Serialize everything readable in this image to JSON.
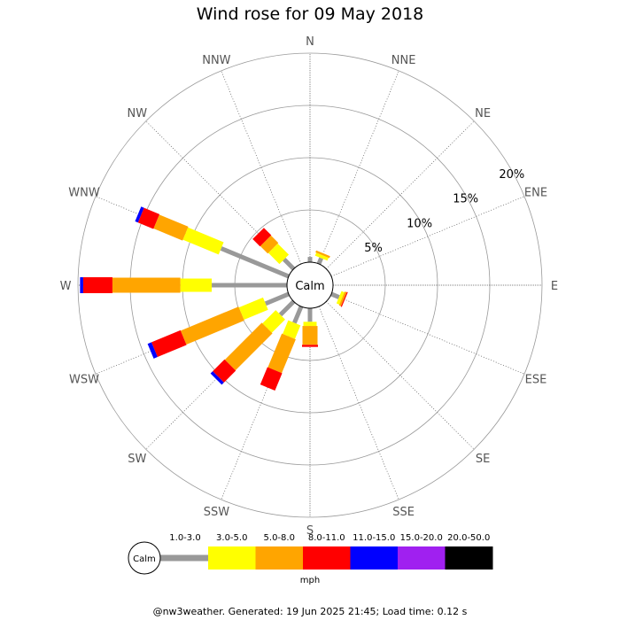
{
  "chart_data": {
    "type": "wind-rose",
    "title": "Wind rose for 09 May 2018",
    "directions": [
      "N",
      "NNE",
      "NE",
      "ENE",
      "E",
      "ESE",
      "SE",
      "SSE",
      "S",
      "SSW",
      "SW",
      "WSW",
      "W",
      "WNW",
      "NW",
      "NNW"
    ],
    "radial_ticks": [
      5,
      10,
      15,
      20
    ],
    "radial_tick_labels": [
      "5%",
      "10%",
      "15%",
      "20%"
    ],
    "radial_max": 20,
    "calm_label": "Calm",
    "speed_unit": "mph",
    "speed_bins": [
      {
        "label": "1.0-3.0",
        "color": "#999999"
      },
      {
        "label": "3.0-5.0",
        "color": "#ffff00"
      },
      {
        "label": "5.0-8.0",
        "color": "#ffa500"
      },
      {
        "label": "8.0-11.0",
        "color": "#ff0000"
      },
      {
        "label": "11.0-15.0",
        "color": "#0000ff"
      },
      {
        "label": "15.0-20.0",
        "color": "#a020f0"
      },
      {
        "label": "20.0-50.0",
        "color": "#000000"
      }
    ],
    "series": [
      {
        "direction": "N",
        "values": [
          0.5,
          0.0,
          0.0,
          0.0,
          0.0,
          0.0,
          0.0
        ]
      },
      {
        "direction": "NNE",
        "values": [
          0.6,
          0.3,
          0.2,
          0.0,
          0.0,
          0.0,
          0.0
        ]
      },
      {
        "direction": "NE",
        "values": [
          0.0,
          0.0,
          0.0,
          0.0,
          0.0,
          0.0,
          0.0
        ]
      },
      {
        "direction": "ENE",
        "values": [
          0.0,
          0.0,
          0.0,
          0.0,
          0.0,
          0.0,
          0.0
        ]
      },
      {
        "direction": "E",
        "values": [
          0.0,
          0.0,
          0.0,
          0.0,
          0.0,
          0.0,
          0.0
        ]
      },
      {
        "direction": "ESE",
        "values": [
          0.8,
          0.3,
          0.2,
          0.1,
          0.0,
          0.0,
          0.0
        ]
      },
      {
        "direction": "SE",
        "values": [
          0.0,
          0.0,
          0.0,
          0.0,
          0.0,
          0.0,
          0.0
        ]
      },
      {
        "direction": "SSE",
        "values": [
          0.0,
          0.0,
          0.0,
          0.0,
          0.0,
          0.0,
          0.0
        ]
      },
      {
        "direction": "S",
        "values": [
          1.3,
          0.4,
          1.8,
          0.2,
          0.0,
          0.0,
          0.0
        ]
      },
      {
        "direction": "SSW",
        "values": [
          1.7,
          1.4,
          3.5,
          1.8,
          0.0,
          0.0,
          0.0
        ]
      },
      {
        "direction": "SW",
        "values": [
          1.8,
          1.8,
          5.0,
          1.6,
          0.3,
          0.0,
          0.0
        ]
      },
      {
        "direction": "WSW",
        "values": [
          2.4,
          2.5,
          6.0,
          3.0,
          0.4,
          0.0,
          0.0
        ]
      },
      {
        "direction": "W",
        "values": [
          7.2,
          3.0,
          6.5,
          2.8,
          0.3,
          0.0,
          0.0
        ]
      },
      {
        "direction": "WNW",
        "values": [
          7.0,
          3.7,
          3.0,
          1.6,
          0.3,
          0.0,
          0.0
        ]
      },
      {
        "direction": "NW",
        "values": [
          1.3,
          1.5,
          1.0,
          1.0,
          0.0,
          0.0,
          0.0
        ]
      },
      {
        "direction": "NNW",
        "values": [
          0.0,
          0.0,
          0.0,
          0.0,
          0.0,
          0.0,
          0.0
        ]
      }
    ]
  },
  "footer": "@nw3weather. Generated: 19 Jun 2025 21:45; Load time: 0.12 s"
}
